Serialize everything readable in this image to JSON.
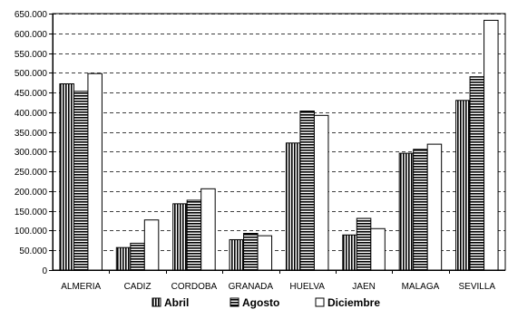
{
  "chart_data": {
    "type": "bar",
    "categories": [
      "ALMERIA",
      "CADIZ",
      "CORDOBA",
      "GRANADA",
      "HUELVA",
      "JAEN",
      "MALAGA",
      "SEVILLA"
    ],
    "series": [
      {
        "name": "Abril",
        "values": [
          472000,
          57000,
          168000,
          77000,
          322000,
          89000,
          296000,
          430000
        ]
      },
      {
        "name": "Agosto",
        "values": [
          453000,
          68000,
          177000,
          93000,
          403000,
          131000,
          306000,
          490000
        ]
      },
      {
        "name": "Diciembre",
        "values": [
          498000,
          127000,
          206000,
          87000,
          392000,
          105000,
          319000,
          633000
        ]
      }
    ],
    "ylim": [
      0,
      650000
    ],
    "ytick_labels": [
      "0",
      "50.000",
      "100.000",
      "150.000",
      "200.000",
      "250.000",
      "300.000",
      "350.000",
      "400.000",
      "450.000",
      "500.000",
      "550.000",
      "600.000",
      "650.000"
    ],
    "grid": true,
    "legend_position": "bottom",
    "colors": {
      "Abril": "#ffffff",
      "Agosto": "#ffffff",
      "Diciembre": "#ffffff"
    },
    "patterns": {
      "Abril": "vertical-stripes",
      "Agosto": "horizontal-stripes",
      "Diciembre": "solid-white"
    }
  }
}
